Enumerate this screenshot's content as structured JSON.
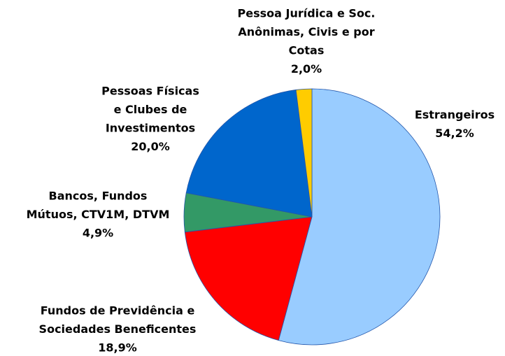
{
  "chart_data": {
    "type": "pie",
    "categories": [
      [
        "Estrangeiros"
      ],
      [
        "Fundos de Previdência e",
        "Sociedades Beneficentes"
      ],
      [
        "Bancos, Fundos",
        "Mútuos, CTV1M, DTVM"
      ],
      [
        "Pessoas Físicas",
        "e Clubes de",
        "Investimentos"
      ],
      [
        "Pessoa Jurídica e Soc.",
        "Anônimas, Civis e por",
        "Cotas"
      ]
    ],
    "values": [
      54.2,
      18.9,
      4.9,
      20.0,
      2.0
    ],
    "value_labels": [
      "54,2%",
      "18,9%",
      "4,9%",
      "20,0%",
      "2,0%"
    ],
    "colors": [
      "#99ccff",
      "#ff0000",
      "#339966",
      "#0066cc",
      "#ffcc00"
    ]
  }
}
